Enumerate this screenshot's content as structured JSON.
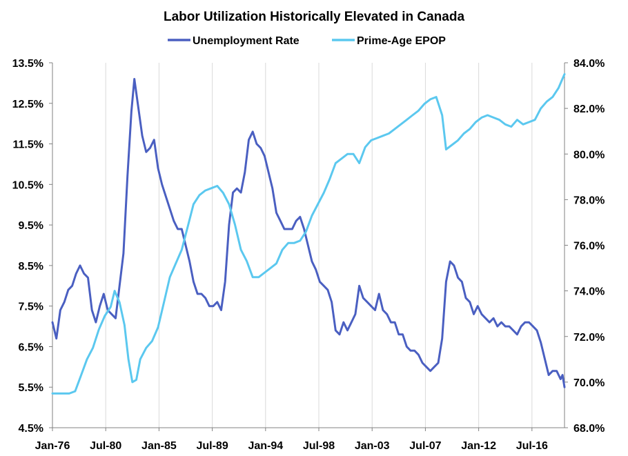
{
  "chart_data": {
    "type": "line",
    "title": "Labor Utilization Historically Elevated in Canada",
    "x_tick_labels": [
      "Jan-76",
      "Jul-80",
      "Jan-85",
      "Jul-89",
      "Jan-94",
      "Jul-98",
      "Jan-03",
      "Jul-07",
      "Jan-12",
      "Jul-16"
    ],
    "x_range": [
      "1976-01",
      "2019-04"
    ],
    "y_left": {
      "ticks": [
        "4.5%",
        "5.5%",
        "6.5%",
        "7.5%",
        "8.5%",
        "9.5%",
        "10.5%",
        "11.5%",
        "12.5%",
        "13.5%"
      ],
      "range": [
        4.5,
        13.5
      ]
    },
    "y_right": {
      "ticks": [
        "68.0%",
        "70.0%",
        "72.0%",
        "74.0%",
        "76.0%",
        "78.0%",
        "80.0%",
        "82.0%",
        "84.0%"
      ],
      "range": [
        68.0,
        84.0
      ]
    },
    "legend_position": "top",
    "grid": "vertical",
    "series": [
      {
        "name": "Unemployment Rate",
        "axis": "left",
        "color": "#4a5fc1",
        "points": [
          [
            "1976-01",
            7.1
          ],
          [
            "1976-05",
            6.7
          ],
          [
            "1976-09",
            7.4
          ],
          [
            "1977-01",
            7.6
          ],
          [
            "1977-05",
            7.9
          ],
          [
            "1977-09",
            8.0
          ],
          [
            "1978-01",
            8.3
          ],
          [
            "1978-05",
            8.5
          ],
          [
            "1978-09",
            8.3
          ],
          [
            "1979-01",
            8.2
          ],
          [
            "1979-05",
            7.4
          ],
          [
            "1979-09",
            7.1
          ],
          [
            "1980-01",
            7.5
          ],
          [
            "1980-05",
            7.8
          ],
          [
            "1980-09",
            7.4
          ],
          [
            "1981-01",
            7.3
          ],
          [
            "1981-05",
            7.2
          ],
          [
            "1981-09",
            8.0
          ],
          [
            "1982-01",
            8.8
          ],
          [
            "1982-05",
            10.7
          ],
          [
            "1982-09",
            12.3
          ],
          [
            "1982-12",
            13.1
          ],
          [
            "1983-04",
            12.4
          ],
          [
            "1983-08",
            11.7
          ],
          [
            "1983-12",
            11.3
          ],
          [
            "1984-04",
            11.4
          ],
          [
            "1984-08",
            11.6
          ],
          [
            "1984-12",
            10.9
          ],
          [
            "1985-04",
            10.5
          ],
          [
            "1985-08",
            10.2
          ],
          [
            "1985-12",
            9.9
          ],
          [
            "1986-04",
            9.6
          ],
          [
            "1986-08",
            9.4
          ],
          [
            "1986-12",
            9.4
          ],
          [
            "1987-04",
            9.0
          ],
          [
            "1987-08",
            8.6
          ],
          [
            "1987-12",
            8.1
          ],
          [
            "1988-04",
            7.8
          ],
          [
            "1988-08",
            7.8
          ],
          [
            "1988-12",
            7.7
          ],
          [
            "1989-04",
            7.5
          ],
          [
            "1989-08",
            7.5
          ],
          [
            "1989-12",
            7.6
          ],
          [
            "1990-04",
            7.4
          ],
          [
            "1990-08",
            8.1
          ],
          [
            "1990-12",
            9.5
          ],
          [
            "1991-04",
            10.3
          ],
          [
            "1991-08",
            10.4
          ],
          [
            "1991-12",
            10.3
          ],
          [
            "1992-04",
            10.8
          ],
          [
            "1992-08",
            11.6
          ],
          [
            "1992-12",
            11.8
          ],
          [
            "1993-04",
            11.5
          ],
          [
            "1993-08",
            11.4
          ],
          [
            "1993-12",
            11.2
          ],
          [
            "1994-04",
            10.8
          ],
          [
            "1994-08",
            10.4
          ],
          [
            "1994-12",
            9.8
          ],
          [
            "1995-04",
            9.6
          ],
          [
            "1995-08",
            9.4
          ],
          [
            "1995-12",
            9.4
          ],
          [
            "1996-04",
            9.4
          ],
          [
            "1996-08",
            9.6
          ],
          [
            "1996-12",
            9.7
          ],
          [
            "1997-04",
            9.4
          ],
          [
            "1997-08",
            9.0
          ],
          [
            "1997-12",
            8.6
          ],
          [
            "1998-04",
            8.4
          ],
          [
            "1998-08",
            8.1
          ],
          [
            "1998-12",
            8.0
          ],
          [
            "1999-04",
            7.9
          ],
          [
            "1999-08",
            7.6
          ],
          [
            "1999-12",
            6.9
          ],
          [
            "2000-04",
            6.8
          ],
          [
            "2000-08",
            7.1
          ],
          [
            "2000-12",
            6.9
          ],
          [
            "2001-04",
            7.1
          ],
          [
            "2001-08",
            7.3
          ],
          [
            "2001-12",
            8.0
          ],
          [
            "2002-04",
            7.7
          ],
          [
            "2002-08",
            7.6
          ],
          [
            "2002-12",
            7.5
          ],
          [
            "2003-04",
            7.4
          ],
          [
            "2003-08",
            7.8
          ],
          [
            "2003-12",
            7.4
          ],
          [
            "2004-04",
            7.3
          ],
          [
            "2004-08",
            7.1
          ],
          [
            "2004-12",
            7.1
          ],
          [
            "2005-04",
            6.8
          ],
          [
            "2005-08",
            6.8
          ],
          [
            "2005-12",
            6.5
          ],
          [
            "2006-04",
            6.4
          ],
          [
            "2006-08",
            6.4
          ],
          [
            "2006-12",
            6.3
          ],
          [
            "2007-04",
            6.1
          ],
          [
            "2007-08",
            6.0
          ],
          [
            "2007-12",
            5.9
          ],
          [
            "2008-04",
            6.0
          ],
          [
            "2008-08",
            6.1
          ],
          [
            "2008-12",
            6.7
          ],
          [
            "2009-04",
            8.1
          ],
          [
            "2009-08",
            8.6
          ],
          [
            "2009-12",
            8.5
          ],
          [
            "2010-04",
            8.2
          ],
          [
            "2010-08",
            8.1
          ],
          [
            "2010-12",
            7.7
          ],
          [
            "2011-04",
            7.6
          ],
          [
            "2011-08",
            7.3
          ],
          [
            "2011-12",
            7.5
          ],
          [
            "2012-04",
            7.3
          ],
          [
            "2012-08",
            7.2
          ],
          [
            "2012-12",
            7.1
          ],
          [
            "2013-04",
            7.2
          ],
          [
            "2013-08",
            7.0
          ],
          [
            "2013-12",
            7.1
          ],
          [
            "2014-04",
            7.0
          ],
          [
            "2014-08",
            7.0
          ],
          [
            "2014-12",
            6.9
          ],
          [
            "2015-04",
            6.8
          ],
          [
            "2015-08",
            7.0
          ],
          [
            "2015-12",
            7.1
          ],
          [
            "2016-04",
            7.1
          ],
          [
            "2016-08",
            7.0
          ],
          [
            "2016-12",
            6.9
          ],
          [
            "2017-04",
            6.6
          ],
          [
            "2017-08",
            6.2
          ],
          [
            "2017-12",
            5.8
          ],
          [
            "2018-04",
            5.9
          ],
          [
            "2018-08",
            5.9
          ],
          [
            "2018-12",
            5.7
          ],
          [
            "2019-02",
            5.8
          ],
          [
            "2019-04",
            5.5
          ]
        ]
      },
      {
        "name": "Prime-Age EPOP",
        "axis": "right",
        "color": "#5bc8ef",
        "points": [
          [
            "1976-01",
            69.5
          ],
          [
            "1976-06",
            69.5
          ],
          [
            "1976-12",
            69.5
          ],
          [
            "1977-06",
            69.5
          ],
          [
            "1977-12",
            69.6
          ],
          [
            "1978-06",
            70.3
          ],
          [
            "1978-12",
            71.0
          ],
          [
            "1979-06",
            71.5
          ],
          [
            "1979-12",
            72.3
          ],
          [
            "1980-06",
            72.9
          ],
          [
            "1980-12",
            73.3
          ],
          [
            "1981-04",
            74.0
          ],
          [
            "1981-09",
            73.5
          ],
          [
            "1982-02",
            72.5
          ],
          [
            "1982-06",
            71.0
          ],
          [
            "1982-10",
            70.0
          ],
          [
            "1983-02",
            70.1
          ],
          [
            "1983-06",
            71.0
          ],
          [
            "1983-12",
            71.5
          ],
          [
            "1984-06",
            71.8
          ],
          [
            "1984-12",
            72.4
          ],
          [
            "1985-06",
            73.5
          ],
          [
            "1985-12",
            74.6
          ],
          [
            "1986-06",
            75.2
          ],
          [
            "1986-12",
            75.8
          ],
          [
            "1987-06",
            76.8
          ],
          [
            "1987-12",
            77.8
          ],
          [
            "1988-06",
            78.2
          ],
          [
            "1988-12",
            78.4
          ],
          [
            "1989-06",
            78.5
          ],
          [
            "1989-12",
            78.6
          ],
          [
            "1990-06",
            78.3
          ],
          [
            "1990-12",
            77.8
          ],
          [
            "1991-06",
            76.9
          ],
          [
            "1991-12",
            75.8
          ],
          [
            "1992-06",
            75.3
          ],
          [
            "1992-12",
            74.6
          ],
          [
            "1993-06",
            74.6
          ],
          [
            "1993-12",
            74.8
          ],
          [
            "1994-06",
            75.0
          ],
          [
            "1994-12",
            75.2
          ],
          [
            "1995-06",
            75.8
          ],
          [
            "1995-12",
            76.1
          ],
          [
            "1996-06",
            76.1
          ],
          [
            "1996-12",
            76.2
          ],
          [
            "1997-06",
            76.6
          ],
          [
            "1997-12",
            77.3
          ],
          [
            "1998-06",
            77.8
          ],
          [
            "1998-12",
            78.3
          ],
          [
            "1999-06",
            78.9
          ],
          [
            "1999-12",
            79.6
          ],
          [
            "2000-06",
            79.8
          ],
          [
            "2000-12",
            80.0
          ],
          [
            "2001-06",
            80.0
          ],
          [
            "2001-12",
            79.6
          ],
          [
            "2002-06",
            80.3
          ],
          [
            "2002-12",
            80.6
          ],
          [
            "2003-06",
            80.7
          ],
          [
            "2003-12",
            80.8
          ],
          [
            "2004-06",
            80.9
          ],
          [
            "2004-12",
            81.1
          ],
          [
            "2005-06",
            81.3
          ],
          [
            "2005-12",
            81.5
          ],
          [
            "2006-06",
            81.7
          ],
          [
            "2006-12",
            81.9
          ],
          [
            "2007-06",
            82.2
          ],
          [
            "2007-12",
            82.4
          ],
          [
            "2008-06",
            82.5
          ],
          [
            "2008-12",
            81.7
          ],
          [
            "2009-04",
            80.2
          ],
          [
            "2009-10",
            80.4
          ],
          [
            "2010-04",
            80.6
          ],
          [
            "2010-10",
            80.9
          ],
          [
            "2011-04",
            81.1
          ],
          [
            "2011-10",
            81.4
          ],
          [
            "2012-04",
            81.6
          ],
          [
            "2012-10",
            81.7
          ],
          [
            "2013-04",
            81.6
          ],
          [
            "2013-10",
            81.5
          ],
          [
            "2014-04",
            81.3
          ],
          [
            "2014-10",
            81.2
          ],
          [
            "2015-04",
            81.5
          ],
          [
            "2015-10",
            81.3
          ],
          [
            "2016-04",
            81.4
          ],
          [
            "2016-10",
            81.5
          ],
          [
            "2017-04",
            82.0
          ],
          [
            "2017-10",
            82.3
          ],
          [
            "2018-04",
            82.5
          ],
          [
            "2018-10",
            82.9
          ],
          [
            "2019-01",
            83.2
          ],
          [
            "2019-04",
            83.5
          ]
        ]
      }
    ]
  }
}
